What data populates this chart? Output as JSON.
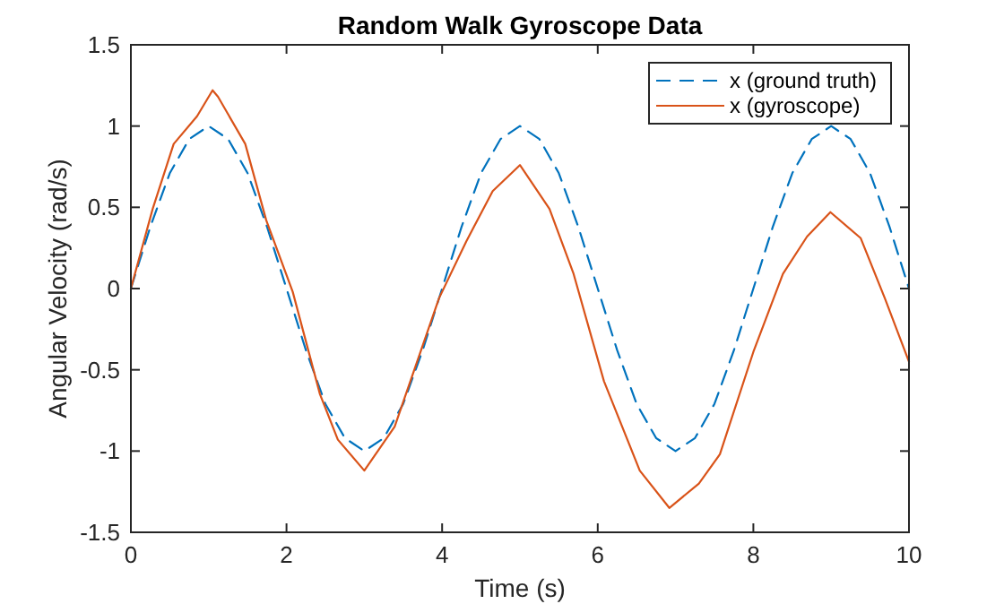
{
  "chart_data": {
    "type": "line",
    "title": "Random Walk Gyroscope Data",
    "xlabel": "Time (s)",
    "ylabel": "Angular Velocity (rad/s)",
    "xlim": [
      0,
      10
    ],
    "ylim": [
      -1.5,
      1.5
    ],
    "xticks": [
      0,
      2,
      4,
      6,
      8,
      10
    ],
    "yticks": [
      -1.5,
      -1,
      -0.5,
      0,
      0.5,
      1,
      1.5
    ],
    "grid": false,
    "legend": "top right",
    "marker": "none",
    "series": [
      {
        "name": "x (ground truth)",
        "color": "#0072bd",
        "line_style": "dashed",
        "x": [
          0,
          0.25,
          0.5,
          0.75,
          1,
          1.25,
          1.5,
          1.75,
          2,
          2.25,
          2.5,
          2.75,
          3,
          3.25,
          3.5,
          3.75,
          4,
          4.25,
          4.5,
          4.75,
          5,
          5.25,
          5.5,
          5.75,
          6,
          6.25,
          6.5,
          6.75,
          7,
          7.25,
          7.5,
          7.75,
          8,
          8.25,
          8.5,
          8.75,
          9,
          9.25,
          9.5,
          9.75,
          10
        ],
        "values": [
          0,
          0.38,
          0.71,
          0.92,
          1,
          0.92,
          0.71,
          0.38,
          0,
          -0.38,
          -0.71,
          -0.92,
          -1,
          -0.92,
          -0.71,
          -0.38,
          0,
          0.38,
          0.71,
          0.92,
          1,
          0.92,
          0.71,
          0.38,
          0,
          -0.38,
          -0.71,
          -0.92,
          -1,
          -0.92,
          -0.71,
          -0.38,
          0,
          0.38,
          0.71,
          0.92,
          1,
          0.92,
          0.71,
          0.38,
          0
        ]
      },
      {
        "name": "x (gyroscope)",
        "color": "#d95319",
        "line_style": "solid",
        "x": [
          0,
          0.28,
          0.55,
          0.85,
          1.05,
          1.12,
          1.47,
          1.74,
          2.08,
          2.43,
          2.66,
          3.0,
          3.39,
          3.96,
          4.31,
          4.65,
          5.0,
          5.38,
          5.69,
          6.08,
          6.54,
          6.92,
          7.3,
          7.57,
          8.0,
          8.38,
          8.69,
          8.99,
          9.38,
          9.69,
          10
        ],
        "values": [
          0,
          0.49,
          0.89,
          1.06,
          1.22,
          1.18,
          0.89,
          0.42,
          -0.02,
          -0.65,
          -0.93,
          -1.12,
          -0.85,
          -0.06,
          0.29,
          0.6,
          0.76,
          0.49,
          0.09,
          -0.57,
          -1.12,
          -1.35,
          -1.2,
          -1.02,
          -0.39,
          0.09,
          0.32,
          0.47,
          0.31,
          -0.06,
          -0.45
        ]
      }
    ]
  }
}
